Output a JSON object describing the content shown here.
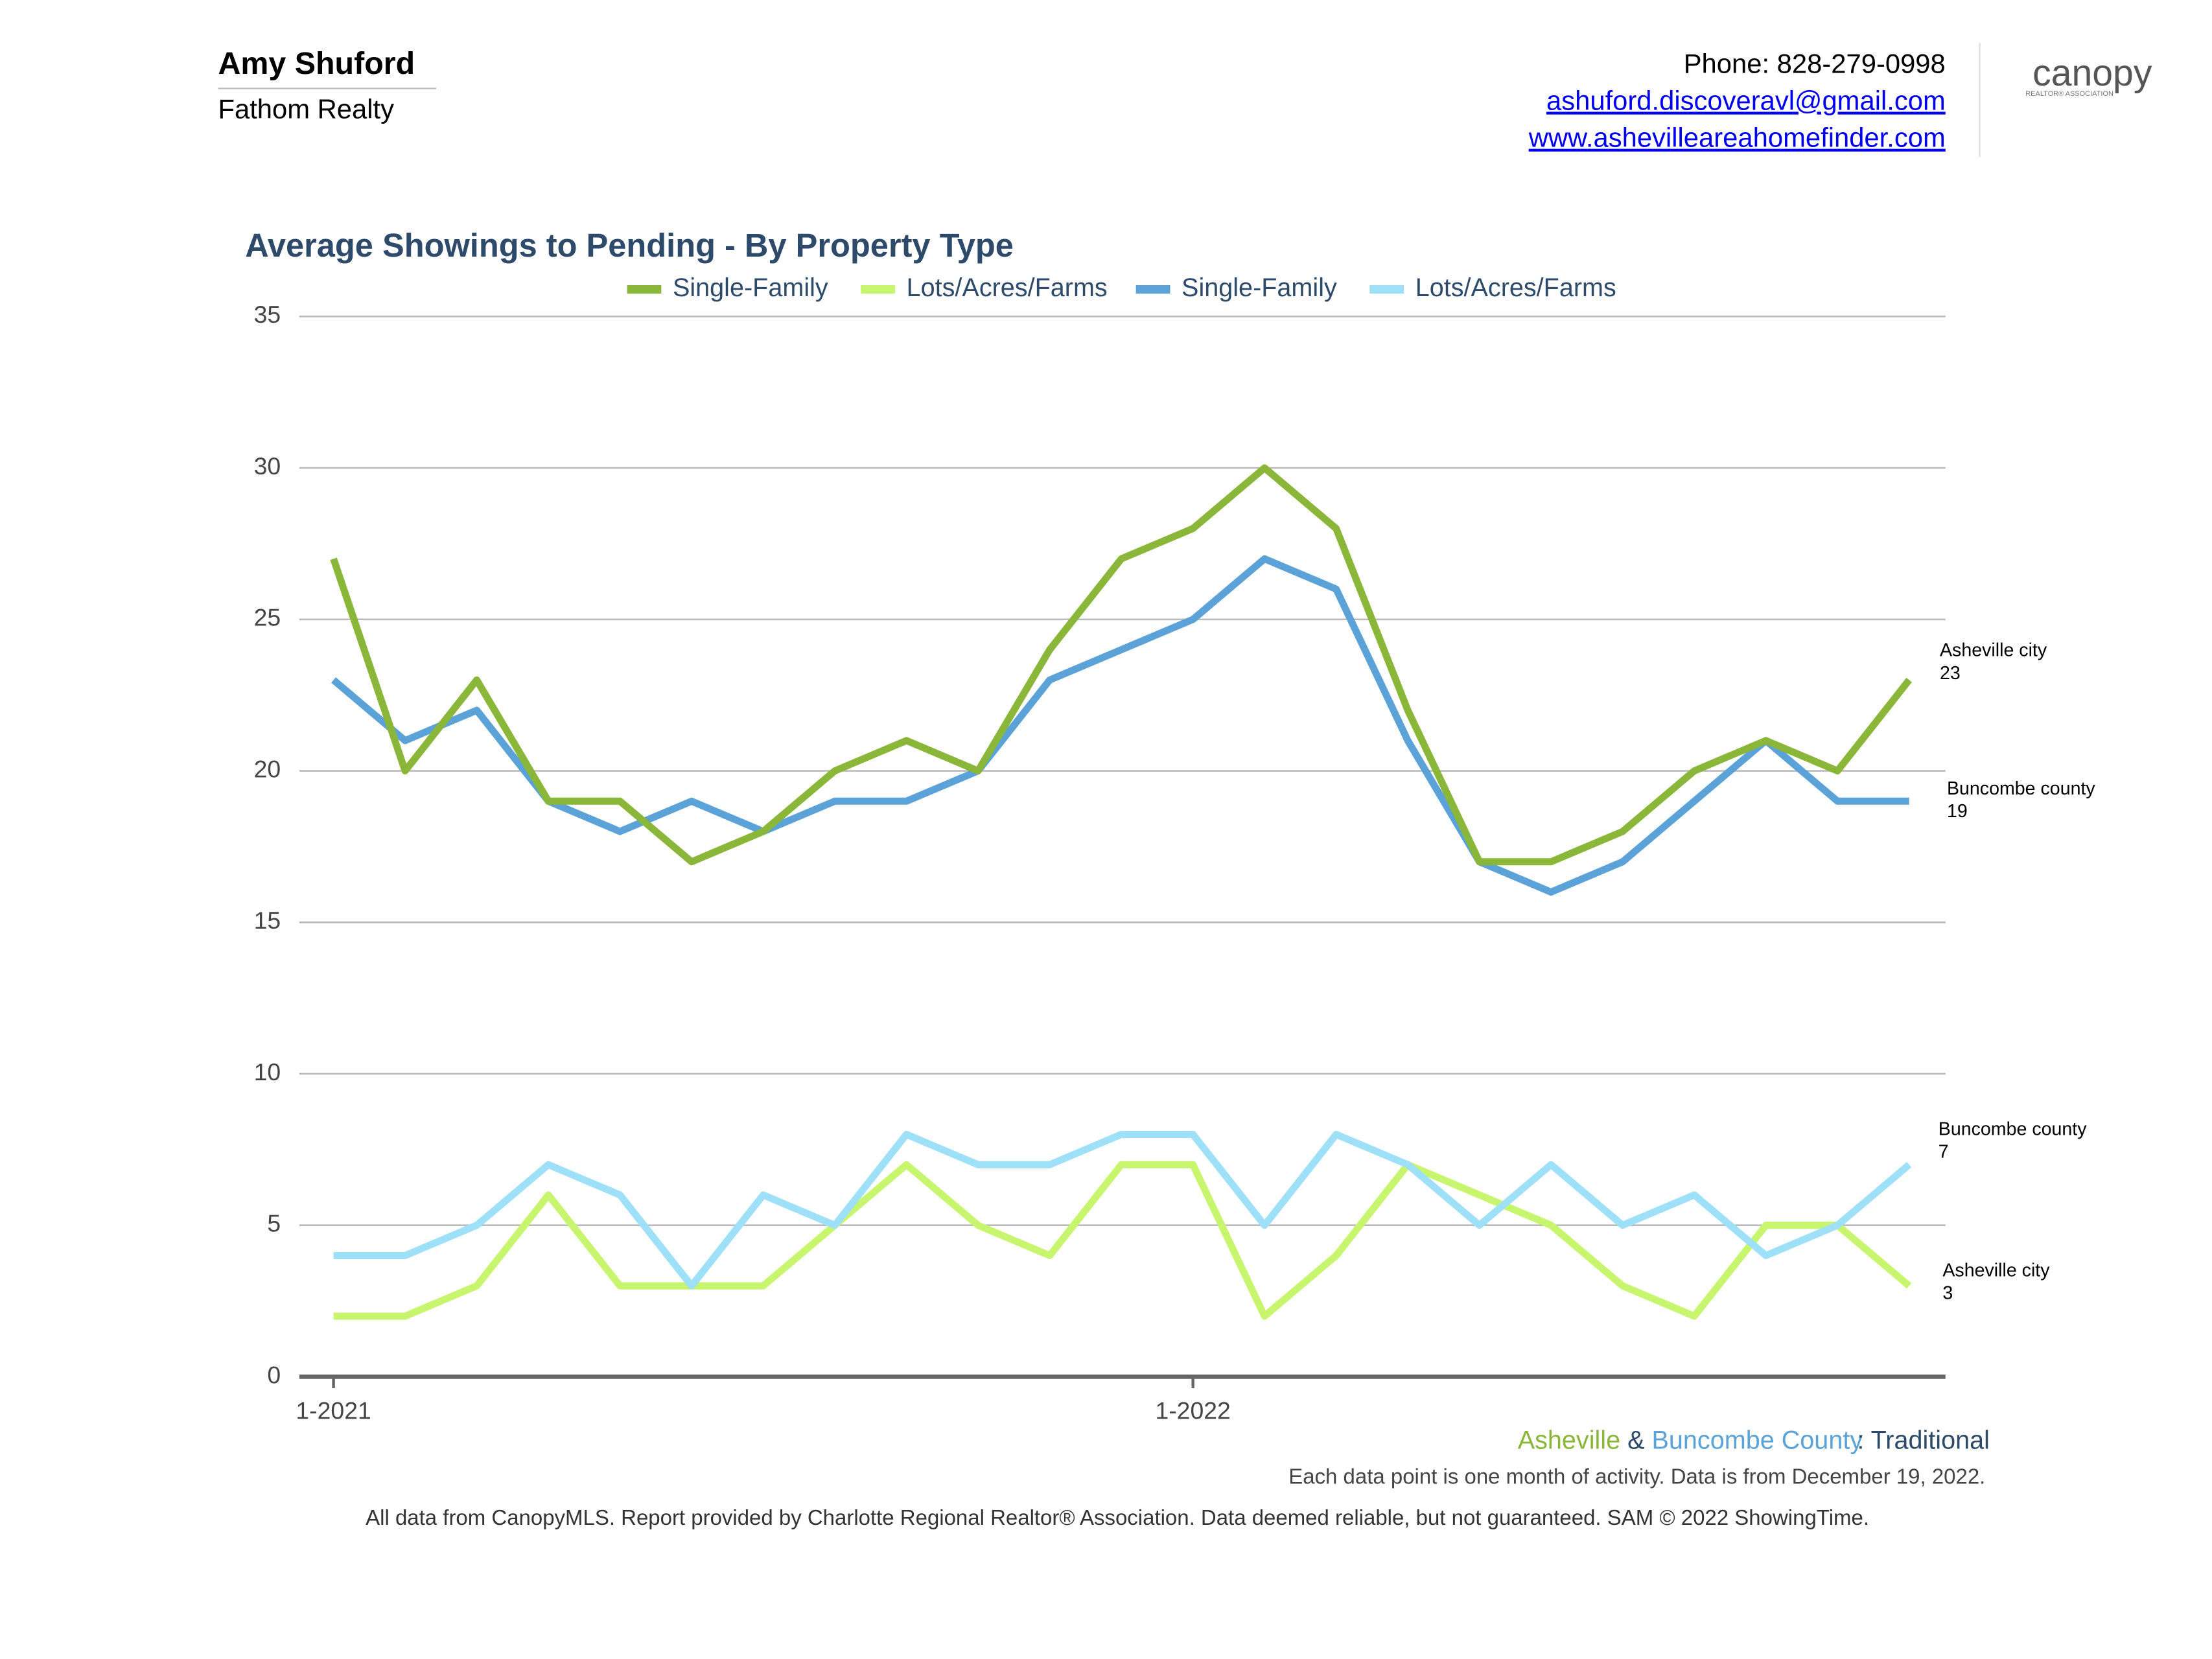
{
  "header": {
    "name": "Amy Shuford",
    "company": "Fathom Realty",
    "phone": "Phone: 828-279-0998",
    "email": "ashuford.discoveravl@gmail.com",
    "website": "www.ashevilleareahomefinder.com",
    "logo_text": "canopy",
    "logo_sub": "REALTOR® ASSOCIATION"
  },
  "chart_data": {
    "type": "line",
    "title": "Average Showings to Pending - By Property Type",
    "categories": [
      "1-2021",
      null,
      null,
      null,
      null,
      null,
      null,
      null,
      null,
      null,
      null,
      null,
      "1-2022",
      null,
      null,
      null,
      null,
      null,
      null,
      null,
      null,
      null,
      null
    ],
    "series": [
      {
        "name": "Single-Family",
        "color": "#8ab73a",
        "values": [
          27,
          20,
          23,
          19,
          19,
          17,
          18,
          20,
          21,
          20,
          24,
          27,
          28,
          30,
          28,
          22,
          17,
          17,
          18,
          20,
          21,
          20,
          23
        ]
      },
      {
        "name": "Lots/Acres/Farms",
        "color": "#c8f56e",
        "values": [
          2,
          2,
          3,
          6,
          3,
          3,
          3,
          5,
          7,
          5,
          4,
          7,
          7,
          2,
          4,
          7,
          6,
          5,
          3,
          2,
          5,
          5,
          3
        ]
      },
      {
        "name": "Single-Family",
        "color": "#5aa2d8",
        "values": [
          23,
          21,
          22,
          19,
          18,
          19,
          18,
          19,
          19,
          20,
          23,
          24,
          25,
          27,
          26,
          21,
          17,
          16,
          17,
          19,
          21,
          19,
          19
        ]
      },
      {
        "name": "Lots/Acres/Farms",
        "color": "#9de0f8",
        "values": [
          4,
          4,
          5,
          7,
          6,
          3,
          6,
          5,
          8,
          7,
          7,
          8,
          8,
          5,
          8,
          7,
          5,
          7,
          5,
          6,
          4,
          5,
          7
        ]
      }
    ],
    "ylim": [
      0,
      35
    ],
    "yticks": [
      0,
      5,
      10,
      15,
      20,
      25,
      30,
      35
    ],
    "grid": true,
    "annotations": [
      {
        "text": "Asheville city",
        "value": 23
      },
      {
        "text": "Buncombe county",
        "value": 19
      },
      {
        "text": "Buncombe county",
        "value": 7
      },
      {
        "text": "Asheville city",
        "value": 3
      }
    ]
  },
  "footer": {
    "legend_a": "Asheville",
    "legend_amp": "&",
    "legend_b": "Buncombe County",
    "legend_c": ": Traditional",
    "note": "Each data point is one month of activity. Data is from December 19, 2022.",
    "source": "All data from CanopyMLS. Report provided by Charlotte Regional Realtor® Association. Data deemed reliable, but not guaranteed. SAM © 2022 ShowingTime."
  }
}
